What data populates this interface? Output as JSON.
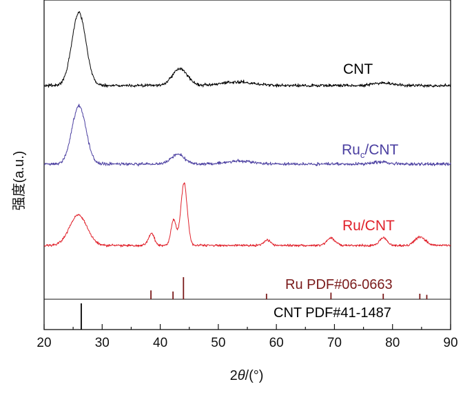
{
  "chart_data": {
    "type": "line",
    "title": "",
    "xlabel_prefix": "2",
    "xlabel_var": "θ",
    "xlabel_suffix": "/(°)",
    "ylabel": "强度(a.u.)",
    "xlim": [
      20,
      90
    ],
    "x_ticks": [
      20,
      30,
      40,
      50,
      60,
      70,
      80,
      90
    ],
    "grid": false,
    "legend": "none",
    "series": [
      {
        "name": "CNT",
        "color": "#000000",
        "baseline": 0.0,
        "peaks": [
          [
            26.0,
            1.0,
            1.2
          ],
          [
            43.4,
            0.23,
            1.3
          ],
          [
            53.5,
            0.05,
            2.5
          ],
          [
            78.2,
            0.04,
            1.5
          ]
        ],
        "noise": 0.022
      },
      {
        "name": "Ru",
        "subscript": "c",
        "suffix": "/CNT",
        "color": "#4a3ea0",
        "baseline": 0.0,
        "peaks": [
          [
            26.0,
            0.85,
            1.2
          ],
          [
            43.0,
            0.14,
            1.2
          ],
          [
            53.5,
            0.04,
            2.5
          ],
          [
            78.0,
            0.03,
            1.5
          ]
        ],
        "noise": 0.022
      },
      {
        "name": "Ru/CNT",
        "color": "#e0202a",
        "baseline": 0.0,
        "peaks": [
          [
            25.9,
            0.45,
            1.5
          ],
          [
            38.5,
            0.18,
            0.5
          ],
          [
            42.3,
            0.38,
            0.45
          ],
          [
            44.1,
            0.92,
            0.55
          ],
          [
            58.4,
            0.08,
            0.6
          ],
          [
            69.4,
            0.11,
            0.7
          ],
          [
            78.4,
            0.11,
            0.65
          ],
          [
            84.8,
            0.13,
            0.9
          ]
        ],
        "noise": 0.018
      }
    ],
    "references": [
      {
        "name": "Ru PDF#06-0663",
        "color": "#7a1a1a",
        "lines": [
          [
            38.4,
            0.4
          ],
          [
            42.2,
            0.35
          ],
          [
            44.0,
            1.0
          ],
          [
            58.3,
            0.25
          ],
          [
            69.4,
            0.3
          ],
          [
            78.4,
            0.25
          ],
          [
            84.7,
            0.25
          ],
          [
            85.9,
            0.2
          ]
        ]
      },
      {
        "name": "CNT PDF#41-1487",
        "color": "#000000",
        "lines": [
          [
            26.4,
            1.0
          ]
        ]
      }
    ]
  }
}
